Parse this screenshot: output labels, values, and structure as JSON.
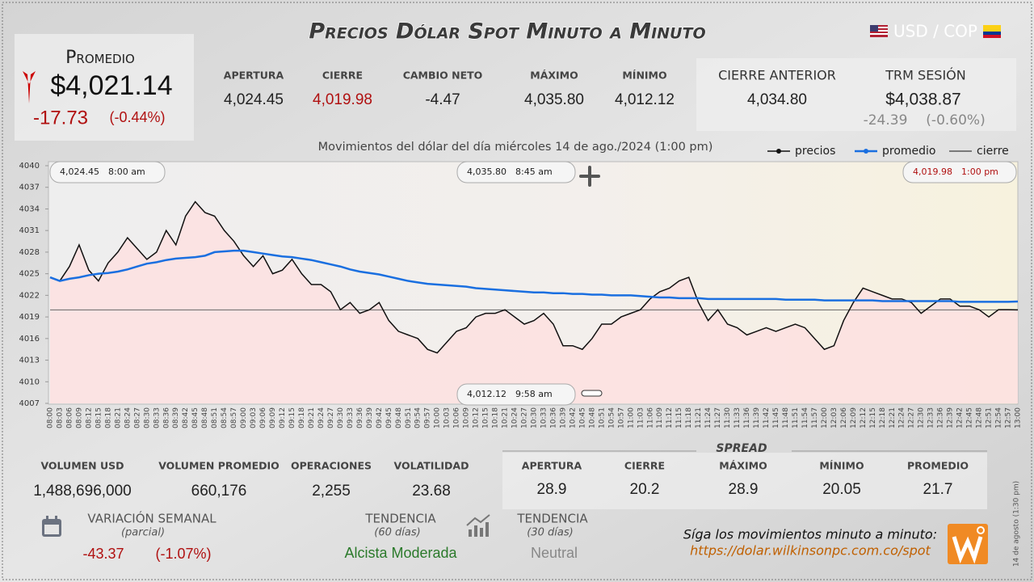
{
  "header": {
    "title": "Precios Dólar Spot Minuto a Minuto",
    "pair": "USD / COP"
  },
  "promedio": {
    "label": "Promedio",
    "value": "$4,021.14",
    "change": "-17.73",
    "change_pct": "(-0.44%)"
  },
  "session_stats": [
    {
      "label": "APERTURA",
      "value": "4,024.45"
    },
    {
      "label": "CIERRE",
      "value": "4,019.98"
    },
    {
      "label": "CAMBIO NETO",
      "value": "-4.47"
    },
    {
      "label": "MÁXIMO",
      "value": "4,035.80"
    },
    {
      "label": "MÍNIMO",
      "value": "4,012.12"
    }
  ],
  "reference_stats": [
    {
      "label": "CIERRE ANTERIOR",
      "value": "4,034.80"
    },
    {
      "label": "TRM SESIÓN",
      "value": "$4,038.87",
      "change": "-24.39",
      "change_pct": "(-0.60%)"
    }
  ],
  "chart_data": {
    "type": "line",
    "subtitle": "Movimientos del dólar del día miércoles 14 de ago./2024 (1:00 pm)",
    "x": [
      "08:00",
      "08:03",
      "08:06",
      "08:09",
      "08:12",
      "08:15",
      "08:18",
      "08:21",
      "08:24",
      "08:27",
      "08:30",
      "08:33",
      "08:36",
      "08:39",
      "08:42",
      "08:45",
      "08:48",
      "08:51",
      "08:54",
      "08:57",
      "09:00",
      "09:03",
      "09:06",
      "09:09",
      "09:12",
      "09:15",
      "09:18",
      "09:21",
      "09:24",
      "09:27",
      "09:30",
      "09:33",
      "09:36",
      "09:39",
      "09:42",
      "09:45",
      "09:48",
      "09:51",
      "09:54",
      "09:57",
      "10:00",
      "10:03",
      "10:06",
      "10:09",
      "10:12",
      "10:15",
      "10:18",
      "10:21",
      "10:24",
      "10:27",
      "10:30",
      "10:33",
      "10:36",
      "10:39",
      "10:42",
      "10:45",
      "10:48",
      "10:51",
      "10:54",
      "10:57",
      "11:00",
      "11:03",
      "11:06",
      "11:09",
      "11:12",
      "11:15",
      "11:18",
      "11:21",
      "11:24",
      "11:27",
      "11:30",
      "11:33",
      "11:36",
      "11:39",
      "11:42",
      "11:45",
      "11:48",
      "11:51",
      "11:54",
      "11:57",
      "12:00",
      "12:03",
      "12:06",
      "12:09",
      "12:12",
      "12:15",
      "12:18",
      "12:21",
      "12:24",
      "12:27",
      "12:30",
      "12:33",
      "12:36",
      "12:39",
      "12:42",
      "12:45",
      "12:48",
      "12:51",
      "12:54",
      "12:57",
      "13:00"
    ],
    "series": [
      {
        "name": "precios",
        "color": "#111111",
        "values": [
          4024.45,
          4024,
          4026,
          4029,
          4025.5,
          4024,
          4026.5,
          4028,
          4030,
          4028.5,
          4027,
          4028,
          4031,
          4029,
          4033,
          4035,
          4033.5,
          4033,
          4031,
          4029.5,
          4027.5,
          4026,
          4027.5,
          4025,
          4025.5,
          4027,
          4025,
          4023.5,
          4023.5,
          4022.5,
          4020,
          4021,
          4019.5,
          4020,
          4021,
          4018.5,
          4017,
          4016.5,
          4016,
          4014.5,
          4014,
          4015.5,
          4017,
          4017.5,
          4019,
          4019.5,
          4019.5,
          4020,
          4019,
          4018,
          4018.5,
          4019.5,
          4018,
          4015,
          4015,
          4014.5,
          4016,
          4018,
          4018,
          4019,
          4019.5,
          4020,
          4021.5,
          4022.5,
          4023,
          4024,
          4024.5,
          4021,
          4018.5,
          4020,
          4018,
          4017.5,
          4016.5,
          4017,
          4017.5,
          4017,
          4017.5,
          4018,
          4017.5,
          4016,
          4014.5,
          4015,
          4018.5,
          4021,
          4023,
          4022.5,
          4022,
          4021.5,
          4021.5,
          4021,
          4019.5,
          4020.5,
          4021.5,
          4021.5,
          4020.5,
          4020.5,
          4020,
          4019,
          4020,
          4020,
          4019.98
        ]
      },
      {
        "name": "promedio",
        "color": "#1a6fe0",
        "values": [
          4024.5,
          4024,
          4024.3,
          4024.5,
          4024.8,
          4025,
          4025.1,
          4025.3,
          4025.6,
          4026,
          4026.4,
          4026.6,
          4026.9,
          4027.1,
          4027.2,
          4027.3,
          4027.5,
          4028,
          4028.1,
          4028.2,
          4028.2,
          4028,
          4027.8,
          4027.6,
          4027.4,
          4027.3,
          4027.1,
          4026.9,
          4026.6,
          4026.3,
          4026,
          4025.6,
          4025.3,
          4025.1,
          4024.9,
          4024.6,
          4024.3,
          4024,
          4023.8,
          4023.6,
          4023.5,
          4023.4,
          4023.3,
          4023.2,
          4023,
          4022.9,
          4022.8,
          4022.7,
          4022.6,
          4022.5,
          4022.4,
          4022.4,
          4022.3,
          4022.3,
          4022.2,
          4022.2,
          4022.1,
          4022.1,
          4022,
          4022,
          4022,
          4021.9,
          4021.8,
          4021.7,
          4021.7,
          4021.6,
          4021.6,
          4021.6,
          4021.5,
          4021.5,
          4021.5,
          4021.5,
          4021.5,
          4021.5,
          4021.5,
          4021.5,
          4021.4,
          4021.4,
          4021.4,
          4021.4,
          4021.3,
          4021.3,
          4021.3,
          4021.3,
          4021.3,
          4021.3,
          4021.2,
          4021.2,
          4021.2,
          4021.2,
          4021.2,
          4021.2,
          4021.2,
          4021.2,
          4021.1,
          4021.1,
          4021.1,
          4021.1,
          4021.1,
          4021.1,
          4021.14
        ]
      }
    ],
    "cierre": {
      "name": "cierre",
      "color": "#666666",
      "value": 4019.98
    },
    "ylim": [
      4007,
      4040
    ],
    "yticks": [
      4007,
      4010,
      4013,
      4016,
      4019,
      4022,
      4025,
      4028,
      4031,
      4034,
      4037,
      4040
    ],
    "annotations": [
      {
        "value": "4,024.45",
        "time": "8:00 am"
      },
      {
        "value": "4,035.80",
        "time": "8:45 am"
      },
      {
        "value": "4,019.98",
        "time": "1:00 pm"
      },
      {
        "value": "4,012.12",
        "time": "9:58 am"
      }
    ]
  },
  "volume_stats": [
    {
      "label": "VOLUMEN USD",
      "value": "1,488,696,000"
    },
    {
      "label": "VOLUMEN PROMEDIO",
      "value": "660,176"
    },
    {
      "label": "OPERACIONES",
      "value": "2,255"
    },
    {
      "label": "VOLATILIDAD",
      "value": "23.68"
    }
  ],
  "spread": {
    "title": "SPREAD",
    "items": [
      {
        "label": "APERTURA",
        "value": "28.9"
      },
      {
        "label": "CIERRE",
        "value": "20.2"
      },
      {
        "label": "MÁXIMO",
        "value": "28.9"
      },
      {
        "label": "MÍNIMO",
        "value": "20.05"
      },
      {
        "label": "PROMEDIO",
        "value": "21.7"
      }
    ]
  },
  "weekly_variation": {
    "label": "VARIACIÓN SEMANAL",
    "note": "(parcial)",
    "change": "-43.37",
    "change_pct": "(-1.07%)"
  },
  "trends": [
    {
      "label": "TENDENCIA",
      "period": "(60 días)",
      "value": "Alcista Moderada"
    },
    {
      "label": "TENDENCIA",
      "period": "(30 días)",
      "value": "Neutral"
    }
  ],
  "footer": {
    "prompt": "Síga los movimientos minuto a minuto:",
    "url": "https://dolar.wilkinsonpc.com.co/spot",
    "timestamp": "14 de agosto (1:30 pm)"
  }
}
